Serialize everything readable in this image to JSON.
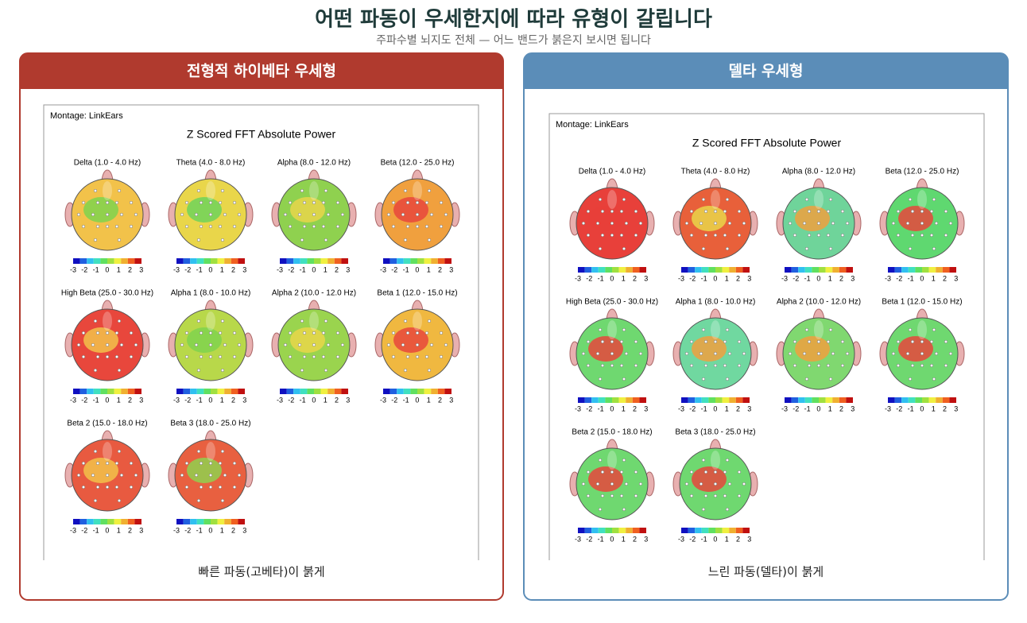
{
  "header": {
    "title": "어떤 파동이 우세한지에 따라 유형이 갈립니다",
    "subtitle": "주파수별 뇌지도 전체 — 어느 밴드가 붉은지 보시면 됩니다"
  },
  "scale_labels": [
    "-3",
    "-2",
    "-1",
    "0",
    "1",
    "2",
    "3"
  ],
  "panels": [
    {
      "title": "전형적 하이베타 우세형",
      "header_color": "#b03a2e",
      "montage": "Montage:  LinkEars",
      "heading": "Z Scored FFT Absolute Power",
      "caption": "빠른 파동(고베타)이 붉게",
      "maps": [
        {
          "label": "Delta (1.0 - 4.0 Hz)",
          "color": "#f2c24a",
          "accent": "#7fd44e"
        },
        {
          "label": "Theta (4.0 - 8.0 Hz)",
          "color": "#e9d64a",
          "accent": "#6fd45a"
        },
        {
          "label": "Alpha (8.0 - 12.0 Hz)",
          "color": "#8fd14f",
          "accent": "#e9d64a"
        },
        {
          "label": "Beta (12.0 - 25.0 Hz)",
          "color": "#f0a03e",
          "accent": "#e8473c"
        },
        {
          "label": "High Beta (25.0 - 30.0 Hz)",
          "color": "#e8473c",
          "accent": "#f2c24a"
        },
        {
          "label": "Alpha 1 (8.0 - 10.0 Hz)",
          "color": "#b8d84a",
          "accent": "#7fd44e"
        },
        {
          "label": "Alpha 2 (10.0 - 12.0 Hz)",
          "color": "#9ad44e",
          "accent": "#e9d64a"
        },
        {
          "label": "Beta 1 (12.0 - 15.0 Hz)",
          "color": "#f0b840",
          "accent": "#e8473c"
        },
        {
          "label": "Beta 2 (15.0 - 18.0 Hz)",
          "color": "#e85a40",
          "accent": "#f2c24a"
        },
        {
          "label": "Beta 3 (18.0 - 25.0 Hz)",
          "color": "#e86040",
          "accent": "#8fd14f"
        }
      ]
    },
    {
      "title": "델타 우세형",
      "header_color": "#5b8db8",
      "montage": "Montage:  LinkEars",
      "heading": "Z Scored FFT Absolute Power",
      "caption": "느린 파동(델타)이 붉게",
      "maps": [
        {
          "label": "Delta (1.0 - 4.0 Hz)",
          "color": "#e8403a",
          "accent": "#e8403a"
        },
        {
          "label": "Theta (4.0 - 8.0 Hz)",
          "color": "#e8603a",
          "accent": "#e9d64a"
        },
        {
          "label": "Alpha (8.0 - 12.0 Hz)",
          "color": "#6fd49a",
          "accent": "#f0a03e"
        },
        {
          "label": "Beta (12.0 - 25.0 Hz)",
          "color": "#5fd870",
          "accent": "#e8473c"
        },
        {
          "label": "High Beta (25.0 - 30.0 Hz)",
          "color": "#6fd870",
          "accent": "#e8473c"
        },
        {
          "label": "Alpha 1 (8.0 - 10.0 Hz)",
          "color": "#70d8a0",
          "accent": "#f0a03e"
        },
        {
          "label": "Alpha 2 (10.0 - 12.0 Hz)",
          "color": "#80d870",
          "accent": "#f0a03e"
        },
        {
          "label": "Beta 1 (12.0 - 15.0 Hz)",
          "color": "#6fd870",
          "accent": "#e8473c"
        },
        {
          "label": "Beta 2 (15.0 - 18.0 Hz)",
          "color": "#6fd870",
          "accent": "#e8473c"
        },
        {
          "label": "Beta 3 (18.0 - 25.0 Hz)",
          "color": "#6fd870",
          "accent": "#e8473c"
        }
      ]
    }
  ]
}
